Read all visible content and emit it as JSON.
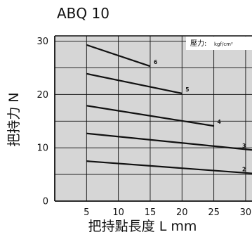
{
  "chart_data": {
    "type": "line",
    "title": "ABQ 10",
    "xlabel": "把持點長度 L mm",
    "ylabel": "把持力 N",
    "xlim": [
      0,
      31
    ],
    "ylim": [
      0,
      31
    ],
    "x_ticks": [
      5,
      10,
      15,
      20,
      25,
      30
    ],
    "y_ticks": [
      0,
      10,
      20,
      30
    ],
    "grid": true,
    "legend": {
      "title": "壓力:",
      "unit": "kgf/cm²",
      "placement": "top-right"
    },
    "series": [
      {
        "name": "2",
        "x": [
          5,
          31
        ],
        "y": [
          7.5,
          5.2
        ]
      },
      {
        "name": "3",
        "x": [
          5,
          31
        ],
        "y": [
          12.7,
          9.6
        ]
      },
      {
        "name": "4",
        "x": [
          5,
          25
        ],
        "y": [
          17.9,
          14.1
        ]
      },
      {
        "name": "5",
        "x": [
          5,
          20
        ],
        "y": [
          23.9,
          20.2
        ]
      },
      {
        "name": "6",
        "x": [
          5,
          15
        ],
        "y": [
          29.3,
          25.3
        ]
      }
    ]
  }
}
